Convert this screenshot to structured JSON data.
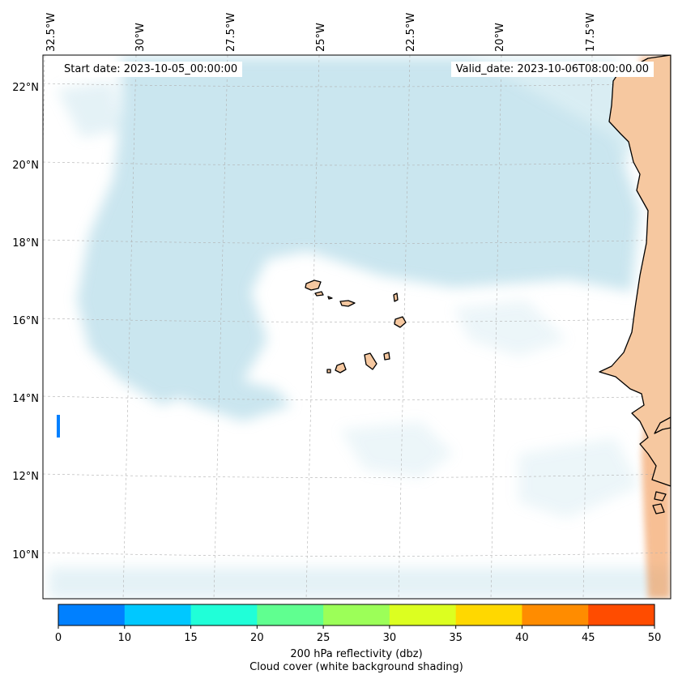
{
  "map": {
    "start_label": "Start date: 2023-10-05_00:00:00",
    "valid_label": "Valid_date: 2023-10-06T08:00:00.00",
    "lon_ticks": [
      "32.5°W",
      "30°W",
      "27.5°W",
      "25°W",
      "22.5°W",
      "20°W",
      "17.5°W"
    ],
    "lat_ticks": [
      "22°N",
      "20°N",
      "18°N",
      "16°N",
      "14°N",
      "12°N",
      "10°N"
    ],
    "land_fill_color": "#f6c8a0",
    "cloud_color": "#add8e6",
    "high_reflectivity_color": "#f08a3c"
  },
  "colorbar": {
    "ticks": [
      "0",
      "10",
      "15",
      "20",
      "25",
      "30",
      "35",
      "40",
      "45",
      "50"
    ],
    "colors": [
      "#0080ff",
      "#00c8ff",
      "#20ffd8",
      "#60ff90",
      "#9cff58",
      "#dcff20",
      "#ffd800",
      "#ff8c00",
      "#ff4c00"
    ],
    "label_line1": "200 hPa reflectivity (dbz)",
    "label_line2": "Cloud cover (white background shading)"
  }
}
